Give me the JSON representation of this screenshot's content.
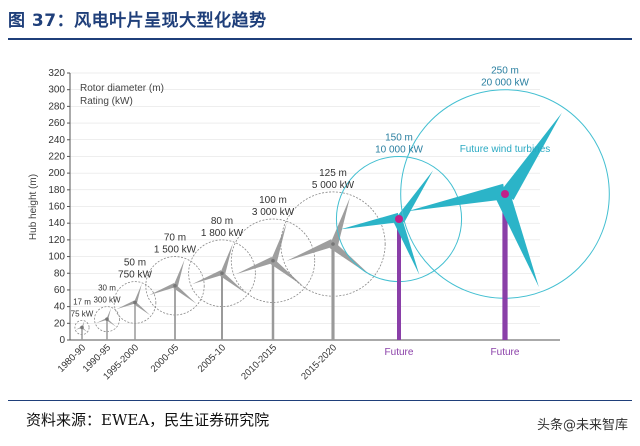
{
  "figure": {
    "title": "图 37：风电叶片呈现大型化趋势",
    "source": "资料来源：EWEA，民生证券研究院",
    "watermark": "头条@未来智库"
  },
  "colors": {
    "title": "#1f3f7a",
    "axis": "#555555",
    "grid": "#dddddd",
    "tower": "#9a9a9a",
    "future_tower": "#8a3fa8",
    "future_blade": "#2bb4c8",
    "future_circle": "#43bfd1",
    "hub": "#c0208a"
  },
  "chart_data": {
    "type": "scatter",
    "ylabel": "Hub height (m)",
    "ylim": [
      0,
      320
    ],
    "yticks": [
      0,
      20,
      40,
      60,
      80,
      100,
      120,
      140,
      160,
      180,
      200,
      220,
      240,
      260,
      280,
      300,
      320
    ],
    "legend": [
      "Rotor diameter (m)",
      "Rating (kW)"
    ],
    "annotation": "Future wind turbines",
    "categories": [
      "1980-90",
      "1990-95",
      "1995-2000",
      "2000-05",
      "2005-10",
      "2010-2015",
      "2015-2020",
      "Future",
      "Future"
    ],
    "points": [
      {
        "period": "1980-90",
        "hub_height": 15,
        "rotor_diameter": 17,
        "rotor_label": "17 m",
        "rating_kw": 75,
        "rating_label": "75 kW",
        "future": false
      },
      {
        "period": "1990-95",
        "hub_height": 25,
        "rotor_diameter": 30,
        "rotor_label": "30 m",
        "rating_kw": 300,
        "rating_label": "300 kW",
        "future": false
      },
      {
        "period": "1995-2000",
        "hub_height": 45,
        "rotor_diameter": 50,
        "rotor_label": "50 m",
        "rating_kw": 750,
        "rating_label": "750 kW",
        "future": false
      },
      {
        "period": "2000-05",
        "hub_height": 65,
        "rotor_diameter": 70,
        "rotor_label": "70 m",
        "rating_kw": 1500,
        "rating_label": "1 500 kW",
        "future": false
      },
      {
        "period": "2005-10",
        "hub_height": 80,
        "rotor_diameter": 80,
        "rotor_label": "80 m",
        "rating_kw": 1800,
        "rating_label": "1 800 kW",
        "future": false
      },
      {
        "period": "2010-2015",
        "hub_height": 95,
        "rotor_diameter": 100,
        "rotor_label": "100 m",
        "rating_kw": 3000,
        "rating_label": "3 000 kW",
        "future": false
      },
      {
        "period": "2015-2020",
        "hub_height": 115,
        "rotor_diameter": 125,
        "rotor_label": "125 m",
        "rating_kw": 5000,
        "rating_label": "5 000 kW",
        "future": false
      },
      {
        "period": "Future",
        "hub_height": 145,
        "rotor_diameter": 150,
        "rotor_label": "150 m",
        "rating_kw": 10000,
        "rating_label": "10 000 kW",
        "future": true
      },
      {
        "period": "Future",
        "hub_height": 175,
        "rotor_diameter": 250,
        "rotor_label": "250 m",
        "rating_kw": 20000,
        "rating_label": "20 000 kW",
        "future": true
      }
    ]
  }
}
